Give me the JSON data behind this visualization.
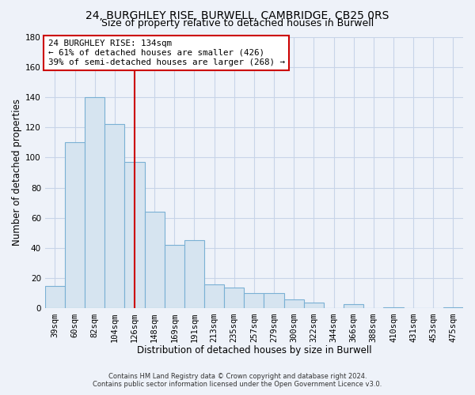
{
  "title": "24, BURGHLEY RISE, BURWELL, CAMBRIDGE, CB25 0RS",
  "subtitle": "Size of property relative to detached houses in Burwell",
  "xlabel": "Distribution of detached houses by size in Burwell",
  "ylabel": "Number of detached properties",
  "categories": [
    "39sqm",
    "60sqm",
    "82sqm",
    "104sqm",
    "126sqm",
    "148sqm",
    "169sqm",
    "191sqm",
    "213sqm",
    "235sqm",
    "257sqm",
    "279sqm",
    "300sqm",
    "322sqm",
    "344sqm",
    "366sqm",
    "388sqm",
    "410sqm",
    "431sqm",
    "453sqm",
    "475sqm"
  ],
  "values": [
    15,
    110,
    140,
    122,
    97,
    64,
    42,
    45,
    16,
    14,
    10,
    10,
    6,
    4,
    0,
    3,
    0,
    1,
    0,
    0,
    1
  ],
  "bar_color": "#d6e4f0",
  "bar_edge_color": "#7ab0d4",
  "vline_x_index": 4,
  "vline_color": "#cc0000",
  "annotation_text": "24 BURGHLEY RISE: 134sqm\n← 61% of detached houses are smaller (426)\n39% of semi-detached houses are larger (268) →",
  "annotation_box_color": "#ffffff",
  "annotation_box_edge_color": "#cc0000",
  "ylim": [
    0,
    180
  ],
  "yticks": [
    0,
    20,
    40,
    60,
    80,
    100,
    120,
    140,
    160,
    180
  ],
  "footer_line1": "Contains HM Land Registry data © Crown copyright and database right 2024.",
  "footer_line2": "Contains public sector information licensed under the Open Government Licence v3.0.",
  "background_color": "#eef2f9",
  "grid_color": "#c8d4e8",
  "plot_bg_color": "#eef2f9",
  "title_fontsize": 10,
  "subtitle_fontsize": 9,
  "axis_label_fontsize": 8.5,
  "tick_fontsize": 7.5
}
